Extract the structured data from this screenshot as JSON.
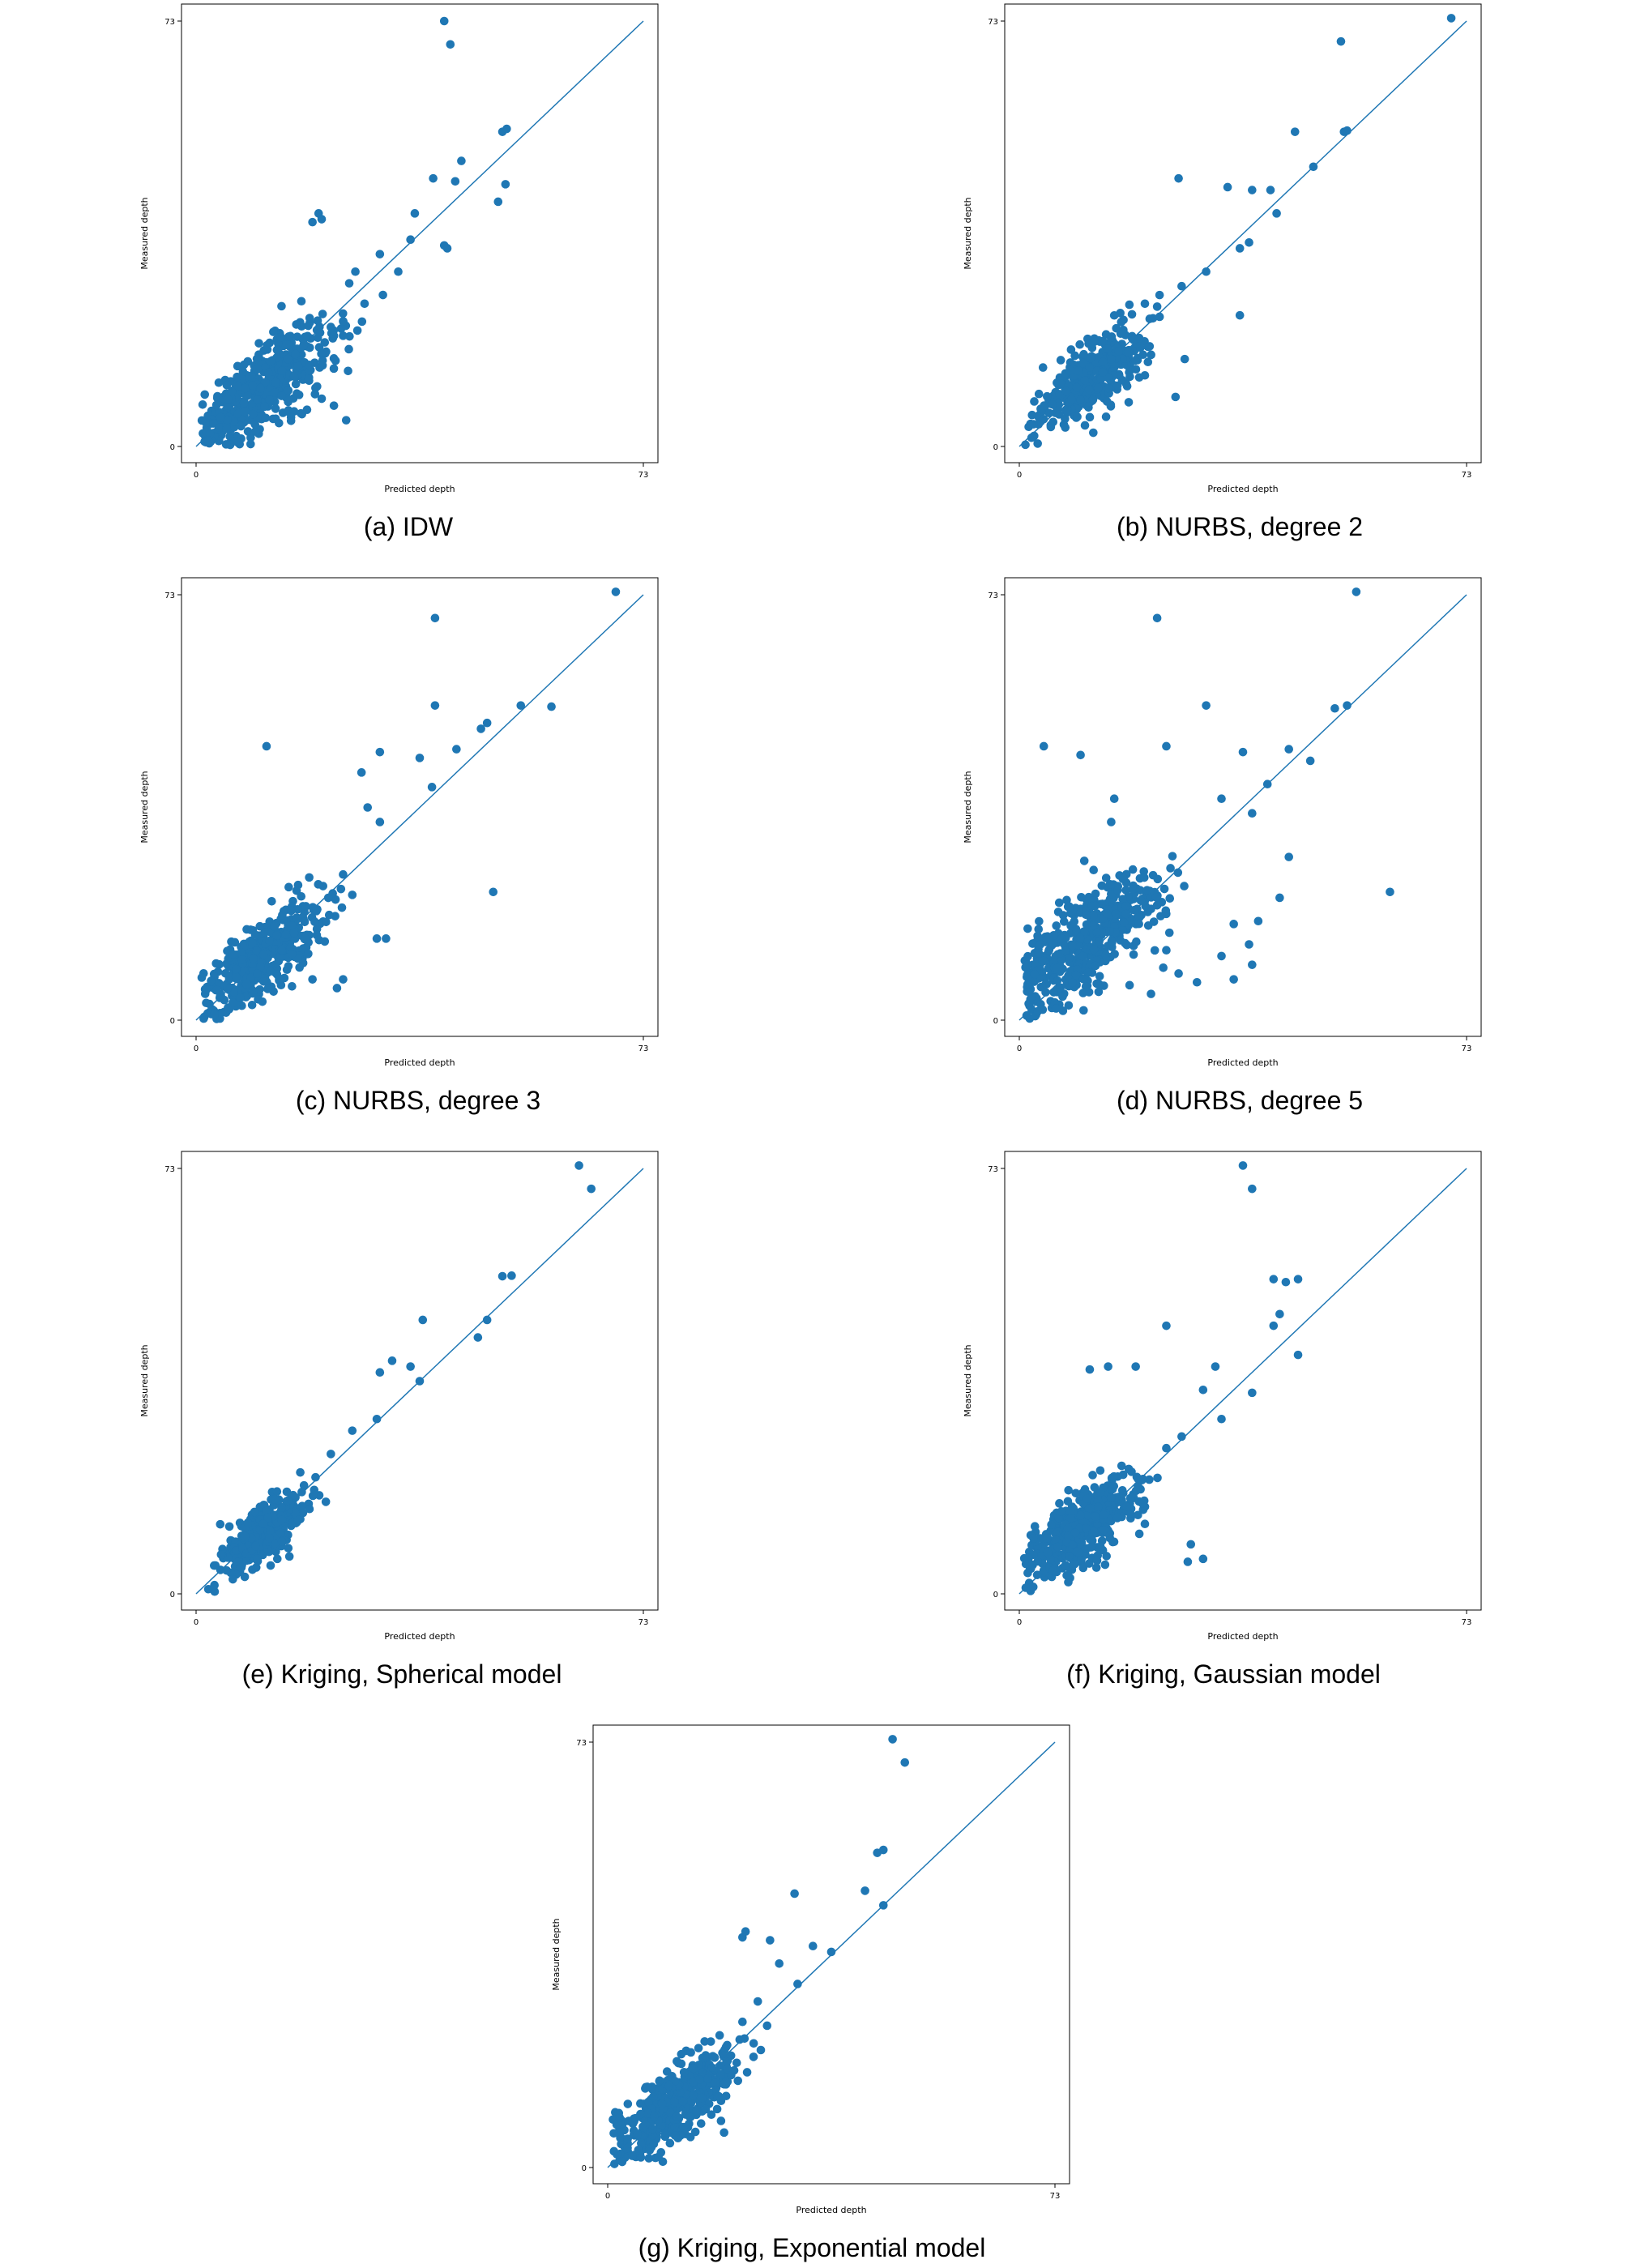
{
  "chart_data": [
    {
      "type": "scatter",
      "title": "",
      "caption": "(a) IDW",
      "xlabel": "Predicted depth",
      "ylabel": "Measured depth",
      "xlim": [
        0,
        73
      ],
      "ylim": [
        0,
        73
      ],
      "xticks": [
        "0",
        "73"
      ],
      "yticks": [
        "0",
        "73"
      ],
      "grid": false,
      "reference_line": [
        [
          0,
          0
        ],
        [
          73,
          73
        ]
      ],
      "color": "#1f77b4",
      "points": [
        [
          40.5,
          73
        ],
        [
          41.5,
          69
        ],
        [
          50,
          54
        ],
        [
          50.7,
          54.5
        ],
        [
          43.3,
          49
        ],
        [
          50.5,
          45
        ],
        [
          42.3,
          45.5
        ],
        [
          38.7,
          46
        ],
        [
          49.3,
          42
        ],
        [
          35.7,
          40
        ],
        [
          20,
          40
        ],
        [
          19,
          38.5
        ],
        [
          20.5,
          39
        ],
        [
          40.5,
          34.5
        ],
        [
          35,
          35.5
        ],
        [
          41,
          34
        ],
        [
          30,
          33
        ],
        [
          33,
          30
        ],
        [
          26,
          30
        ],
        [
          25,
          28
        ],
        [
          30.5,
          26
        ],
        [
          27.5,
          24.5
        ],
        [
          24,
          21.5
        ],
        [
          22,
          20.5
        ],
        [
          22.5,
          19
        ],
        [
          24,
          19
        ],
        [
          17.5,
          17.2
        ],
        [
          15,
          15
        ],
        [
          14,
          13
        ],
        [
          16,
          12
        ],
        [
          13,
          11
        ],
        [
          12,
          8
        ],
        [
          10,
          8
        ],
        [
          10.5,
          10
        ],
        [
          5,
          3
        ],
        [
          4,
          5
        ],
        [
          8,
          6
        ],
        [
          22.5,
          7
        ],
        [
          24.5,
          4.5
        ],
        [
          20.5,
          8.2
        ],
        [
          2,
          1
        ],
        [
          15.5,
          5
        ],
        [
          16.5,
          9
        ],
        [
          18.5,
          14
        ]
      ],
      "cluster": {
        "cx": 11,
        "cy": 10,
        "spread": 4.5,
        "n": 450
      }
    },
    {
      "type": "scatter",
      "title": "",
      "caption": "(b) NURBS, degree 2",
      "xlabel": "Predicted depth",
      "ylabel": "Measured depth",
      "xlim": [
        0,
        73
      ],
      "ylim": [
        0,
        73
      ],
      "xticks": [
        "0",
        "73"
      ],
      "yticks": [
        "0",
        "73"
      ],
      "grid": false,
      "reference_line": [
        [
          0,
          0
        ],
        [
          73,
          73
        ]
      ],
      "color": "#1f77b4",
      "points": [
        [
          70.5,
          73.5
        ],
        [
          52.5,
          69.5
        ],
        [
          53,
          54
        ],
        [
          53.5,
          54.2
        ],
        [
          45,
          54
        ],
        [
          48,
          48
        ],
        [
          26,
          46
        ],
        [
          34,
          44.5
        ],
        [
          38,
          44
        ],
        [
          41,
          44
        ],
        [
          42,
          40
        ],
        [
          37.5,
          35
        ],
        [
          36,
          34
        ],
        [
          30.5,
          30
        ],
        [
          26.5,
          27.5
        ],
        [
          22.5,
          24
        ],
        [
          20.5,
          24.5
        ],
        [
          36,
          22.5
        ],
        [
          15,
          15
        ],
        [
          20.5,
          12.2
        ],
        [
          21,
          14.5
        ],
        [
          27,
          15
        ],
        [
          25.5,
          8.5
        ],
        [
          10,
          8
        ],
        [
          6.5,
          5.5
        ],
        [
          2,
          1.5
        ],
        [
          3,
          0.5
        ],
        [
          1,
          0.3
        ]
      ],
      "cluster": {
        "cx": 12,
        "cy": 12,
        "spread": 3.6,
        "n": 380
      }
    },
    {
      "type": "scatter",
      "title": "",
      "caption": "(c) NURBS, degree 3",
      "xlabel": "Predicted depth",
      "ylabel": "Measured depth",
      "xlim": [
        0,
        73
      ],
      "ylim": [
        0,
        73
      ],
      "xticks": [
        "0",
        "73"
      ],
      "yticks": [
        "0",
        "73"
      ],
      "grid": false,
      "reference_line": [
        [
          0,
          0
        ],
        [
          73,
          73
        ]
      ],
      "color": "#1f77b4",
      "points": [
        [
          68.5,
          73.5
        ],
        [
          39,
          69
        ],
        [
          39,
          54
        ],
        [
          53,
          54
        ],
        [
          58,
          53.8
        ],
        [
          47.5,
          51
        ],
        [
          46.5,
          50
        ],
        [
          11.5,
          47
        ],
        [
          30,
          46
        ],
        [
          36.5,
          45
        ],
        [
          27,
          42.5
        ],
        [
          42.5,
          46.5
        ],
        [
          38.5,
          40
        ],
        [
          28,
          36.5
        ],
        [
          30,
          34
        ],
        [
          48.5,
          22
        ],
        [
          24,
          25
        ],
        [
          25.5,
          21.5
        ],
        [
          29.5,
          14
        ],
        [
          31,
          14
        ],
        [
          21,
          13.5
        ],
        [
          16,
          15
        ],
        [
          14,
          12
        ],
        [
          24,
          7
        ],
        [
          19,
          7
        ],
        [
          10,
          8
        ],
        [
          23,
          5.5
        ],
        [
          6,
          3
        ],
        [
          3,
          1
        ]
      ],
      "cluster": {
        "cx": 11,
        "cy": 11,
        "spread": 4,
        "n": 420
      }
    },
    {
      "type": "scatter",
      "title": "",
      "caption": "(d) NURBS, degree 5",
      "xlabel": "Predicted depth",
      "ylabel": "Measured depth",
      "xlim": [
        0,
        73
      ],
      "ylim": [
        0,
        73
      ],
      "xticks": [
        "0",
        "73"
      ],
      "yticks": [
        "0",
        "73"
      ],
      "grid": false,
      "reference_line": [
        [
          0,
          0
        ],
        [
          73,
          73
        ]
      ],
      "color": "#1f77b4",
      "points": [
        [
          55,
          73.5
        ],
        [
          22.5,
          69
        ],
        [
          30.5,
          54
        ],
        [
          51.5,
          53.5
        ],
        [
          53.5,
          54
        ],
        [
          4,
          47
        ],
        [
          10,
          45.5
        ],
        [
          24,
          47
        ],
        [
          36.5,
          46
        ],
        [
          44,
          46.5
        ],
        [
          47.5,
          44.5
        ],
        [
          40.5,
          40.5
        ],
        [
          33,
          38
        ],
        [
          15.5,
          38
        ],
        [
          15,
          34
        ],
        [
          38,
          35.5
        ],
        [
          60.5,
          22
        ],
        [
          44,
          28
        ],
        [
          42.5,
          21
        ],
        [
          39,
          17
        ],
        [
          35,
          16.5
        ],
        [
          37.5,
          13
        ],
        [
          24.5,
          15
        ],
        [
          24,
          12
        ],
        [
          23.5,
          9
        ],
        [
          26,
          8
        ],
        [
          38,
          9.5
        ],
        [
          33,
          11
        ],
        [
          35,
          7
        ],
        [
          29,
          6.5
        ],
        [
          18,
          6
        ],
        [
          21.5,
          4.5
        ],
        [
          3,
          1.5
        ],
        [
          2,
          4
        ],
        [
          6,
          2
        ]
      ],
      "cluster": {
        "cx": 11,
        "cy": 14,
        "spread": 5,
        "n": 480
      }
    },
    {
      "type": "scatter",
      "title": "",
      "caption": "(e) Kriging, Spherical model",
      "xlabel": "Predicted depth",
      "ylabel": "Measured depth",
      "xlim": [
        0,
        73
      ],
      "ylim": [
        0,
        73
      ],
      "xticks": [
        "0",
        "73"
      ],
      "yticks": [
        "0",
        "73"
      ],
      "grid": false,
      "reference_line": [
        [
          0,
          0
        ],
        [
          73,
          73
        ]
      ],
      "color": "#1f77b4",
      "points": [
        [
          62.5,
          73.5
        ],
        [
          64.5,
          69.5
        ],
        [
          50,
          54.5
        ],
        [
          51.5,
          54.6
        ],
        [
          47.5,
          47
        ],
        [
          46,
          44
        ],
        [
          37,
          47
        ],
        [
          35,
          39
        ],
        [
          32,
          40
        ],
        [
          30,
          38
        ],
        [
          36.5,
          36.5
        ],
        [
          29.5,
          30
        ],
        [
          25.5,
          28
        ],
        [
          22,
          24
        ],
        [
          19.5,
          20
        ],
        [
          15,
          16
        ],
        [
          5,
          4
        ],
        [
          3,
          1.5
        ],
        [
          2,
          0.8
        ],
        [
          6,
          2.5
        ],
        [
          10,
          6
        ],
        [
          14,
          9
        ]
      ],
      "cluster": {
        "cx": 11,
        "cy": 10.5,
        "spread": 2.6,
        "n": 360
      }
    },
    {
      "type": "scatter",
      "title": "",
      "caption": "(f) Kriging, Gaussian model",
      "xlabel": "Predicted depth",
      "ylabel": "Measured depth",
      "xlim": [
        0,
        73
      ],
      "ylim": [
        0,
        73
      ],
      "xticks": [
        "0",
        "73"
      ],
      "yticks": [
        "0",
        "73"
      ],
      "grid": false,
      "reference_line": [
        [
          0,
          0
        ],
        [
          73,
          73
        ]
      ],
      "color": "#1f77b4",
      "points": [
        [
          36.5,
          73.5
        ],
        [
          38,
          69.5
        ],
        [
          41.5,
          54
        ],
        [
          43.5,
          53.5
        ],
        [
          45.5,
          54
        ],
        [
          42.5,
          48
        ],
        [
          41.5,
          46
        ],
        [
          24,
          46
        ],
        [
          14.5,
          39
        ],
        [
          11.5,
          38.5
        ],
        [
          19,
          39
        ],
        [
          32,
          39
        ],
        [
          45.5,
          41
        ],
        [
          38,
          34.5
        ],
        [
          30,
          35
        ],
        [
          33,
          30
        ],
        [
          26.5,
          27
        ],
        [
          24,
          25
        ],
        [
          28,
          8.5
        ],
        [
          27.5,
          5.5
        ],
        [
          30,
          6
        ],
        [
          20.5,
          12
        ],
        [
          16,
          13
        ],
        [
          17.5,
          15
        ],
        [
          20,
          19.5
        ],
        [
          14,
          5
        ],
        [
          5.5,
          4
        ],
        [
          8,
          2
        ]
      ],
      "cluster": {
        "cx": 9.5,
        "cy": 11,
        "spread": 3.6,
        "n": 430
      }
    },
    {
      "type": "scatter",
      "title": "",
      "caption": "(g) Kriging, Exponential model",
      "xlabel": "Predicted depth",
      "ylabel": "Measured depth",
      "xlim": [
        0,
        73
      ],
      "ylim": [
        0,
        73
      ],
      "xticks": [
        "0",
        "73"
      ],
      "yticks": [
        "0",
        "73"
      ],
      "grid": false,
      "reference_line": [
        [
          0,
          0
        ],
        [
          73,
          73
        ]
      ],
      "color": "#1f77b4",
      "points": [
        [
          46.5,
          73.5
        ],
        [
          48.5,
          69.5
        ],
        [
          44,
          54
        ],
        [
          45,
          54.5
        ],
        [
          30.5,
          47
        ],
        [
          42,
          47.5
        ],
        [
          45,
          45
        ],
        [
          26.5,
          39
        ],
        [
          22,
          39.5
        ],
        [
          22.5,
          40.5
        ],
        [
          36.5,
          37
        ],
        [
          33.5,
          38
        ],
        [
          28,
          35
        ],
        [
          31,
          31.5
        ],
        [
          24.5,
          28.5
        ],
        [
          22,
          25
        ],
        [
          19.5,
          21
        ],
        [
          17.5,
          14.5
        ],
        [
          19,
          6
        ],
        [
          18.5,
          8
        ],
        [
          11,
          5.5
        ],
        [
          4,
          2
        ],
        [
          5,
          3
        ],
        [
          9,
          1
        ],
        [
          14,
          17
        ],
        [
          16,
          10
        ]
      ],
      "cluster": {
        "cx": 11,
        "cy": 11,
        "spread": 3.8,
        "n": 420
      }
    }
  ]
}
